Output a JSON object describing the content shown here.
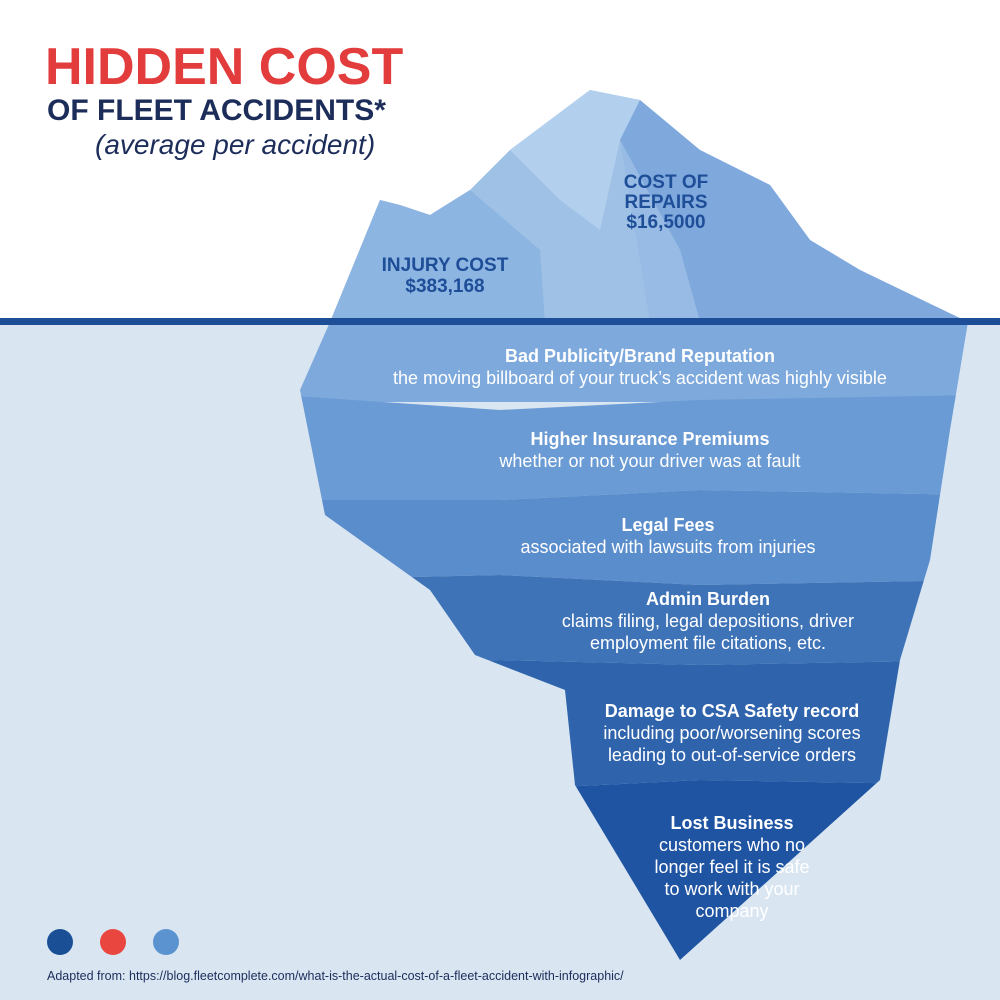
{
  "header": {
    "title": "HIDDEN COST",
    "subtitle": "OF FLEET ACCIDENTS*",
    "note": "(average per accident)"
  },
  "above_water": [
    {
      "lines": [
        "COST OF",
        "REPAIRS"
      ],
      "value": "$16,5000"
    },
    {
      "lines": [
        "INJURY COST"
      ],
      "value": "$383,168"
    }
  ],
  "layers": [
    {
      "title": "Bad Publicity/Brand Reputation",
      "lines": [
        "the moving billboard of your truck’s accident was highly visible"
      ]
    },
    {
      "title": "Higher Insurance Premiums",
      "lines": [
        "whether or not your driver was at fault"
      ]
    },
    {
      "title": "Legal Fees",
      "lines": [
        "associated with lawsuits from injuries"
      ]
    },
    {
      "title": "Admin Burden",
      "lines": [
        "claims filing, legal depositions, driver",
        "employment file citations, etc."
      ]
    },
    {
      "title": "Damage to CSA Safety record",
      "lines": [
        "including poor/worsening scores",
        "leading to out-of-service orders"
      ]
    },
    {
      "title": "Lost Business",
      "lines": [
        "customers who no",
        "longer feel it is safe",
        "to work with your",
        "company"
      ]
    }
  ],
  "source": "Adapted from: https://blog.fleetcomplete.com/what-is-the-actual-cost-of-a-fleet-accident-with-infographic/"
}
